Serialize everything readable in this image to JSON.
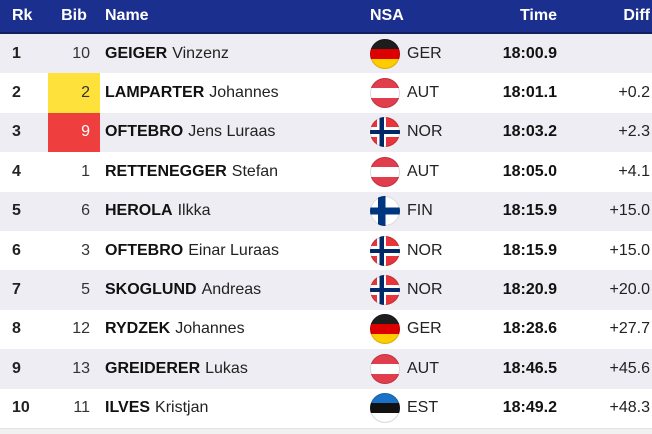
{
  "table": {
    "columns": [
      {
        "key": "rk",
        "label": "Rk"
      },
      {
        "key": "bib",
        "label": "Bib"
      },
      {
        "key": "name",
        "label": "Name"
      },
      {
        "key": "nsa",
        "label": "NSA"
      },
      {
        "key": "time",
        "label": "Time"
      },
      {
        "key": "diff",
        "label": "Diff"
      }
    ],
    "rows": [
      {
        "rk": "1",
        "bib": "10",
        "bib_highlight": "none",
        "surname": "GEIGER",
        "given": "Vinzenz",
        "nsa": "GER",
        "time": "18:00.9",
        "diff": ""
      },
      {
        "rk": "2",
        "bib": "2",
        "bib_highlight": "yellow",
        "surname": "LAMPARTER",
        "given": "Johannes",
        "nsa": "AUT",
        "time": "18:01.1",
        "diff": "+0.2"
      },
      {
        "rk": "3",
        "bib": "9",
        "bib_highlight": "red",
        "surname": "OFTEBRO",
        "given": "Jens Luraas",
        "nsa": "NOR",
        "time": "18:03.2",
        "diff": "+2.3"
      },
      {
        "rk": "4",
        "bib": "1",
        "bib_highlight": "none",
        "surname": "RETTENEGGER",
        "given": "Stefan",
        "nsa": "AUT",
        "time": "18:05.0",
        "diff": "+4.1"
      },
      {
        "rk": "5",
        "bib": "6",
        "bib_highlight": "none",
        "surname": "HEROLA",
        "given": "Ilkka",
        "nsa": "FIN",
        "time": "18:15.9",
        "diff": "+15.0"
      },
      {
        "rk": "6",
        "bib": "3",
        "bib_highlight": "none",
        "surname": "OFTEBRO",
        "given": "Einar Luraas",
        "nsa": "NOR",
        "time": "18:15.9",
        "diff": "+15.0"
      },
      {
        "rk": "7",
        "bib": "5",
        "bib_highlight": "none",
        "surname": "SKOGLUND",
        "given": "Andreas",
        "nsa": "NOR",
        "time": "18:20.9",
        "diff": "+20.0"
      },
      {
        "rk": "8",
        "bib": "12",
        "bib_highlight": "none",
        "surname": "RYDZEK",
        "given": "Johannes",
        "nsa": "GER",
        "time": "18:28.6",
        "diff": "+27.7"
      },
      {
        "rk": "9",
        "bib": "13",
        "bib_highlight": "none",
        "surname": "GREIDERER",
        "given": "Lukas",
        "nsa": "AUT",
        "time": "18:46.5",
        "diff": "+45.6"
      },
      {
        "rk": "10",
        "bib": "11",
        "bib_highlight": "none",
        "surname": "ILVES",
        "given": "Kristjan",
        "nsa": "EST",
        "time": "18:49.2",
        "diff": "+48.3"
      }
    ]
  },
  "colors": {
    "header-bg": "#1b2f8e",
    "header-border": "#11205f",
    "row-alt": "#ededf3",
    "leader-bib-bg": "#ffe13b",
    "leader-bib-text": "#333333",
    "red-bib-bg": "#ef3e3e",
    "red-bib-text": "#ffffff"
  }
}
